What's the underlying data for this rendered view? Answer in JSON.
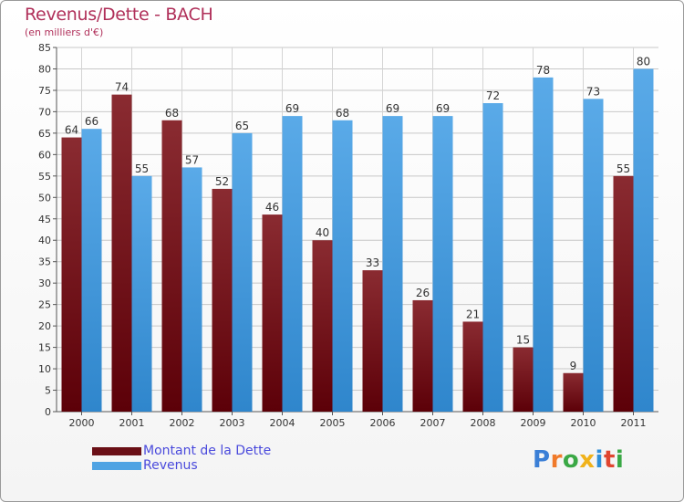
{
  "chart_data": {
    "type": "bar",
    "title": "Revenus/Dette - BACH",
    "subtitle": "(en milliers d'€)",
    "categories": [
      "2000",
      "2001",
      "2002",
      "2003",
      "2004",
      "2005",
      "2006",
      "2007",
      "2008",
      "2009",
      "2010",
      "2011"
    ],
    "series": [
      {
        "name": "Montant de la Dette",
        "values": [
          64,
          74,
          68,
          52,
          46,
          40,
          33,
          26,
          21,
          15,
          9,
          55
        ],
        "color": "#6a0f16"
      },
      {
        "name": "Revenus",
        "values": [
          66,
          55,
          57,
          65,
          69,
          68,
          69,
          69,
          72,
          78,
          73,
          80
        ],
        "color": "#4fa3e3"
      }
    ],
    "ylim": [
      0,
      85
    ],
    "yticks": [
      0,
      5,
      10,
      15,
      20,
      25,
      30,
      35,
      40,
      45,
      50,
      55,
      60,
      65,
      70,
      75,
      80,
      85
    ],
    "grid": true,
    "legend": "bottom-left"
  },
  "logo": {
    "letters": [
      "P",
      "r",
      "o",
      "x",
      "i",
      "t",
      "i"
    ],
    "colors": [
      "#3b7fd6",
      "#f07a2a",
      "#3aa845",
      "#f0b21a",
      "#2f8fd8",
      "#e0452f",
      "#3aa845"
    ]
  }
}
